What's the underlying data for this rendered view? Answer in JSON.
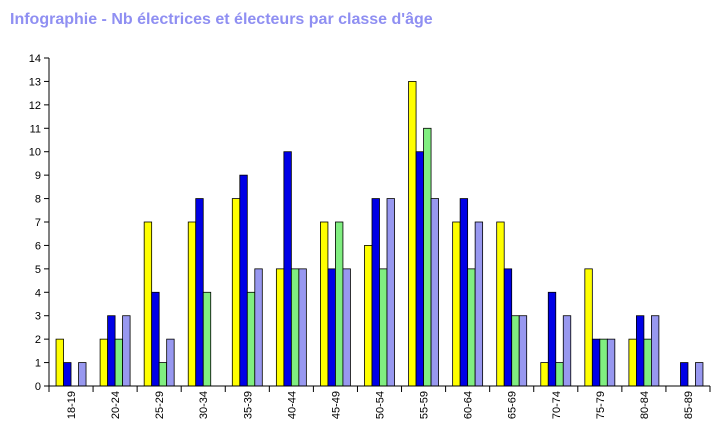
{
  "title": "Infographie - Nb électrices et électeurs par classe d'âge",
  "chart_data": {
    "type": "bar",
    "title": "Infographie - Nb électrices et électeurs par classe d'âge",
    "xlabel": "",
    "ylabel": "",
    "ylim": [
      0,
      14
    ],
    "yticks": [
      "0",
      "1",
      "2",
      "3",
      "4",
      "5",
      "6",
      "7",
      "8",
      "9",
      "10",
      "11",
      "12",
      "13",
      "14"
    ],
    "grid": false,
    "legend": "none",
    "categories": [
      "18-19",
      "20-24",
      "25-29",
      "30-34",
      "35-39",
      "40-44",
      "45-49",
      "50-54",
      "55-59",
      "60-64",
      "65-69",
      "70-74",
      "75-79",
      "80-84",
      "85-89"
    ],
    "series": [
      {
        "color": "#ffff00",
        "values": [
          2,
          2,
          7,
          7,
          8,
          5,
          7,
          6,
          13,
          7,
          7,
          1,
          5,
          2,
          0
        ]
      },
      {
        "color": "#0000e6",
        "values": [
          1,
          3,
          4,
          8,
          9,
          10,
          5,
          8,
          10,
          8,
          5,
          4,
          2,
          3,
          1
        ]
      },
      {
        "color": "#80ee80",
        "values": [
          0,
          2,
          1,
          4,
          4,
          5,
          7,
          5,
          11,
          5,
          3,
          1,
          2,
          2,
          0
        ]
      },
      {
        "color": "#9898f0",
        "values": [
          1,
          3,
          2,
          0,
          5,
          5,
          5,
          8,
          8,
          7,
          3,
          3,
          2,
          3,
          1
        ]
      }
    ]
  }
}
